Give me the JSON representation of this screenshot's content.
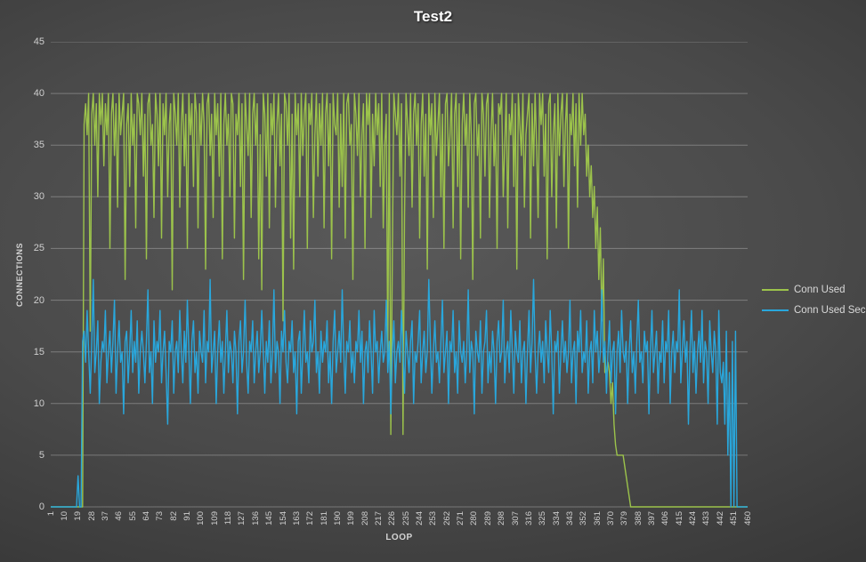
{
  "title": "Test2",
  "colors": {
    "series_green": "#9CC34B",
    "series_blue": "#29A7DC",
    "gridline": "rgba(255,255,255,0.28)",
    "tick_text": "#cfcfcf",
    "title_text": "#ffffff",
    "background_center": "#595959",
    "background_edge": "#272727"
  },
  "chart_data": {
    "type": "line",
    "title": "Test2",
    "xlabel": "LOOP",
    "ylabel": "CONNECTIONS",
    "ylim": [
      0,
      45
    ],
    "x_range": [
      1,
      460
    ],
    "grid": true,
    "legend_position": "right",
    "y_ticks": [
      0,
      5,
      10,
      15,
      20,
      25,
      30,
      35,
      40,
      45
    ],
    "x_tick_labels": [
      "1",
      "10",
      "19",
      "28",
      "37",
      "46",
      "55",
      "64",
      "73",
      "82",
      "91",
      "100",
      "109",
      "118",
      "127",
      "136",
      "145",
      "154",
      "163",
      "172",
      "181",
      "190",
      "199",
      "208",
      "217",
      "226",
      "235",
      "244",
      "253",
      "262",
      "271",
      "280",
      "289",
      "298",
      "307",
      "316",
      "325",
      "334",
      "343",
      "352",
      "361",
      "370",
      "379",
      "388",
      "397",
      "406",
      "415",
      "424",
      "433",
      "442",
      "451",
      "460"
    ],
    "series": [
      {
        "name": "Conn Used",
        "color": "#9CC34B",
        "values": [
          0,
          0,
          0,
          0,
          0,
          0,
          0,
          0,
          0,
          0,
          0,
          0,
          0,
          0,
          0,
          0,
          0,
          0,
          0,
          0,
          0,
          0,
          37,
          39,
          36,
          40,
          17,
          38,
          40,
          35,
          39,
          30,
          40,
          37,
          40,
          33,
          39,
          36,
          40,
          25,
          38,
          40,
          34,
          39,
          29,
          40,
          36,
          38,
          40,
          22,
          37,
          39,
          31,
          40,
          35,
          38,
          27,
          40,
          39,
          36,
          40,
          32,
          38,
          24,
          39,
          40,
          35,
          37,
          28,
          40,
          38,
          33,
          40,
          26,
          39,
          36,
          40,
          30,
          37,
          39,
          21,
          40,
          38,
          35,
          40,
          29,
          37,
          40,
          33,
          38,
          25,
          40,
          36,
          39,
          31,
          40,
          38,
          27,
          39,
          35,
          40,
          37,
          23,
          39,
          40,
          34,
          38,
          28,
          40,
          36,
          39,
          32,
          40,
          24,
          37,
          40,
          35,
          38,
          30,
          40,
          39,
          26,
          38,
          36,
          40,
          31,
          39,
          22,
          40,
          37,
          34,
          40,
          28,
          38,
          40,
          35,
          39,
          24,
          36,
          21,
          40,
          38,
          32,
          40,
          27,
          39,
          36,
          40,
          29,
          37,
          40,
          33,
          38,
          18,
          40,
          39,
          35,
          40,
          26,
          38,
          23,
          40,
          36,
          39,
          30,
          40,
          34,
          38,
          40,
          25,
          39,
          37,
          40,
          28,
          36,
          40,
          32,
          39,
          35,
          40,
          27,
          38,
          40,
          33,
          39,
          24,
          40,
          37,
          36,
          40,
          29,
          38,
          31,
          40,
          26,
          39,
          40,
          35,
          37,
          22,
          40,
          38,
          34,
          40,
          30,
          36,
          39,
          25,
          40,
          37,
          40,
          28,
          38,
          33,
          40,
          36,
          39,
          31,
          40,
          27,
          35,
          38,
          15,
          40,
          7,
          24,
          40,
          38,
          36,
          40,
          32,
          39,
          7,
          28,
          40,
          37,
          34,
          40,
          29,
          38,
          40,
          35,
          39,
          26,
          37,
          40,
          32,
          38,
          23,
          40,
          36,
          39,
          28,
          40,
          34,
          37,
          40,
          30,
          38,
          25,
          39,
          40,
          33,
          36,
          40,
          27,
          38,
          40,
          31,
          39,
          24,
          37,
          40,
          35,
          38,
          29,
          40,
          36,
          22,
          39,
          40,
          34,
          37,
          26,
          40,
          38,
          32,
          39,
          40,
          28,
          36,
          40,
          33,
          37,
          25,
          39,
          38,
          40,
          30,
          35,
          40,
          27,
          38,
          36,
          40,
          31,
          39,
          23,
          40,
          37,
          34,
          40,
          29,
          36,
          38,
          40,
          26,
          39,
          33,
          40,
          35,
          28,
          40,
          37,
          40,
          32,
          38,
          24,
          39,
          40,
          30,
          36,
          39,
          27,
          40,
          34,
          38,
          40,
          31,
          37,
          40,
          25,
          38,
          36,
          40,
          33,
          39,
          29,
          40,
          35,
          40,
          36,
          38,
          32,
          35,
          30,
          33,
          28,
          31,
          25,
          29,
          22,
          27,
          18,
          24,
          13,
          13,
          14,
          13,
          10,
          12,
          8,
          6,
          5,
          5,
          5,
          5,
          5,
          4,
          3,
          2,
          1,
          0,
          0,
          0,
          0,
          0,
          0,
          0,
          0,
          0,
          0,
          0,
          0,
          0,
          0,
          0,
          0,
          0,
          0,
          0,
          0,
          0,
          0,
          0,
          0,
          0,
          0,
          0,
          0,
          0,
          0,
          0,
          0,
          0,
          0,
          0,
          0,
          0,
          0,
          0,
          0,
          0,
          0,
          0,
          0,
          0,
          0,
          0,
          0,
          0,
          0,
          0,
          0,
          0,
          0,
          0,
          0,
          0,
          0,
          0,
          0,
          0,
          0,
          0,
          0,
          0,
          0,
          0,
          0,
          0,
          0,
          0,
          0,
          0,
          0,
          0,
          0,
          0,
          0
        ]
      },
      {
        "name": "Conn Used Sec",
        "color": "#29A7DC",
        "values": [
          0,
          0,
          0,
          0,
          0,
          0,
          0,
          0,
          0,
          0,
          0,
          0,
          0,
          0,
          0,
          0,
          0,
          0,
          3,
          0,
          0,
          16,
          17,
          14,
          19,
          15,
          11,
          16,
          22,
          13,
          15,
          18,
          10,
          14,
          16,
          15,
          19,
          12,
          15,
          17,
          13,
          16,
          20,
          11,
          15,
          18,
          14,
          15,
          9,
          16,
          17,
          12,
          15,
          19,
          13,
          16,
          14,
          18,
          11,
          15,
          17,
          15,
          12,
          16,
          21,
          13,
          15,
          10,
          18,
          14,
          16,
          15,
          19,
          12,
          15,
          17,
          13,
          8,
          16,
          15,
          18,
          11,
          15,
          16,
          13,
          19,
          15,
          12,
          17,
          14,
          20,
          15,
          10,
          16,
          18,
          13,
          15,
          11,
          17,
          15,
          14,
          19,
          12,
          16,
          15,
          22,
          13,
          15,
          17,
          10,
          15,
          18,
          14,
          16,
          11,
          15,
          19,
          13,
          16,
          15,
          12,
          17,
          15,
          9,
          16,
          18,
          13,
          15,
          20,
          14,
          11,
          16,
          15,
          18,
          12,
          15,
          17,
          13,
          15,
          19,
          15,
          11,
          16,
          14,
          18,
          12,
          15,
          21,
          13,
          16,
          15,
          10,
          17,
          15,
          19,
          14,
          12,
          16,
          15,
          18,
          13,
          15,
          9,
          16,
          17,
          11,
          15,
          19,
          14,
          15,
          12,
          18,
          15,
          16,
          20,
          13,
          15,
          11,
          17,
          14,
          16,
          15,
          18,
          12,
          15,
          10,
          16,
          19,
          13,
          15,
          17,
          14,
          21,
          15,
          11,
          16,
          15,
          18,
          13,
          15,
          12,
          16,
          15,
          19,
          14,
          17,
          10,
          15,
          16,
          13,
          18,
          15,
          11,
          19,
          15,
          16,
          12,
          15,
          17,
          14,
          15,
          20,
          13,
          16,
          9,
          15,
          18,
          12,
          15,
          16,
          14,
          19,
          15,
          11,
          17,
          15,
          13,
          16,
          18,
          10,
          15,
          14,
          16,
          19,
          12,
          15,
          17,
          13,
          15,
          22,
          16,
          11,
          15,
          18,
          14,
          15,
          12,
          16,
          20,
          13,
          15,
          17,
          10,
          16,
          15,
          19,
          13,
          15,
          11,
          18,
          15,
          14,
          16,
          12,
          15,
          21,
          13,
          16,
          15,
          9,
          17,
          15,
          14,
          18,
          11,
          15,
          16,
          19,
          12,
          15,
          13,
          17,
          15,
          10,
          16,
          18,
          14,
          15,
          20,
          12,
          15,
          16,
          13,
          19,
          15,
          11,
          17,
          15,
          14,
          18,
          12,
          15,
          16,
          10,
          15,
          19,
          13,
          16,
          22,
          15,
          11,
          15,
          17,
          14,
          16,
          12,
          18,
          15,
          13,
          19,
          15,
          9,
          16,
          15,
          17,
          11,
          15,
          18,
          14,
          16,
          13,
          15,
          20,
          12,
          15,
          16,
          10,
          17,
          15,
          19,
          13,
          15,
          14,
          18,
          11,
          15,
          16,
          12,
          19,
          15,
          17,
          13,
          15,
          21,
          14,
          16,
          11,
          15,
          18,
          12,
          15,
          16,
          9,
          15,
          17,
          13,
          19,
          15,
          14,
          16,
          10,
          15,
          18,
          13,
          15,
          11,
          16,
          20,
          14,
          15,
          12,
          17,
          15,
          16,
          9,
          15,
          19,
          13,
          15,
          17,
          11,
          15,
          14,
          18,
          12,
          16,
          15,
          19,
          10,
          15,
          17,
          13,
          16,
          15,
          21,
          12,
          15,
          18,
          14,
          16,
          8,
          15,
          19,
          13,
          16,
          11,
          15,
          17,
          14,
          19,
          12,
          16,
          15,
          10,
          18,
          15,
          13,
          17,
          15,
          8,
          19,
          13,
          12,
          14,
          8,
          17,
          5,
          13,
          0,
          16,
          0,
          17,
          0,
          0,
          0,
          0,
          0,
          0,
          0,
          0
        ]
      }
    ]
  },
  "legend": {
    "items": [
      {
        "label": "Conn Used"
      },
      {
        "label": "Conn Used Sec"
      }
    ]
  }
}
